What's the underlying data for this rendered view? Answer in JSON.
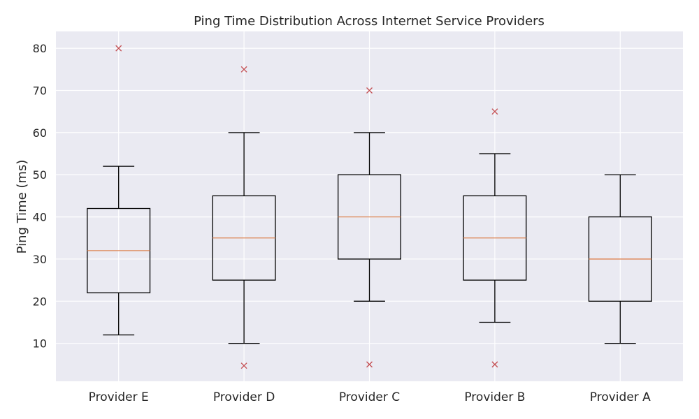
{
  "chart_data": {
    "type": "box",
    "title": "Ping Time Distribution Across Internet Service Providers",
    "xlabel": "",
    "ylabel": "Ping Time (ms)",
    "ylim": [
      1,
      84
    ],
    "yticks": [
      10,
      20,
      30,
      40,
      50,
      60,
      70,
      80
    ],
    "grid": true,
    "categories": [
      "Provider E",
      "Provider D",
      "Provider C",
      "Provider B",
      "Provider A"
    ],
    "boxes": [
      {
        "whisker_low": 12,
        "q1": 22,
        "median": 32,
        "q3": 42,
        "whisker_high": 52,
        "outliers": [
          80
        ]
      },
      {
        "whisker_low": 10,
        "q1": 25,
        "median": 35,
        "q3": 45,
        "whisker_high": 60,
        "outliers": [
          75,
          4.7
        ]
      },
      {
        "whisker_low": 20,
        "q1": 30,
        "median": 40,
        "q3": 50,
        "whisker_high": 60,
        "outliers": [
          70,
          5
        ]
      },
      {
        "whisker_low": 15,
        "q1": 25,
        "median": 35,
        "q3": 45,
        "whisker_high": 55,
        "outliers": [
          65,
          5
        ]
      },
      {
        "whisker_low": 10,
        "q1": 20,
        "median": 30,
        "q3": 40,
        "whisker_high": 50,
        "outliers": []
      }
    ],
    "colors": {
      "plot_bg": "#eaeaf2",
      "grid": "#ffffff",
      "box": "#000000",
      "median": "#dd8452",
      "outlier": "#c44e52"
    }
  }
}
